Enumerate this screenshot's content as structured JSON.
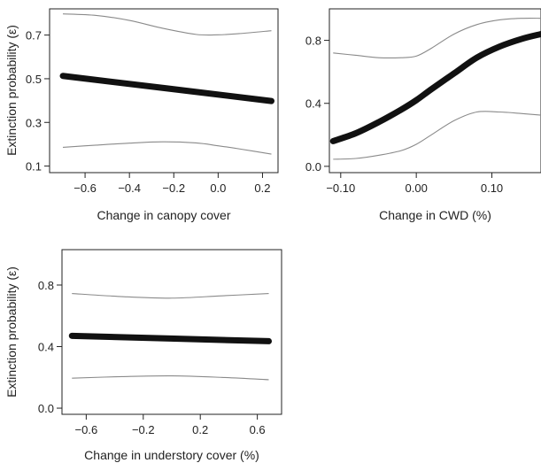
{
  "chart_data": [
    {
      "type": "line",
      "xlabel": "Change in canopy cover",
      "ylabel": "Extinction probability (ε)",
      "xlim": [
        -0.76,
        0.27
      ],
      "ylim": [
        0.07,
        0.82
      ],
      "xticks": [
        -0.6,
        -0.4,
        -0.2,
        0.0,
        0.2
      ],
      "xtick_labels": [
        "−0.6",
        "−0.4",
        "−0.2",
        "0.0",
        "0.2"
      ],
      "yticks": [
        0.1,
        0.3,
        0.5,
        0.7
      ],
      "ytick_labels": [
        "0.1",
        "0.3",
        "0.5",
        "0.7"
      ],
      "series": [
        {
          "role": "lower",
          "color": "#8a8a8a",
          "x": [
            -0.7,
            -0.55,
            -0.4,
            -0.25,
            -0.1,
            0.0,
            0.1,
            0.24
          ],
          "values": [
            0.186,
            0.196,
            0.205,
            0.211,
            0.206,
            0.193,
            0.178,
            0.155
          ]
        },
        {
          "role": "estimate",
          "color": "#111111",
          "x": [
            -0.7,
            0.24
          ],
          "values": [
            0.513,
            0.398
          ]
        },
        {
          "role": "upper",
          "color": "#8a8a8a",
          "x": [
            -0.7,
            -0.55,
            -0.4,
            -0.25,
            -0.1,
            0.0,
            0.1,
            0.24
          ],
          "values": [
            0.797,
            0.79,
            0.767,
            0.731,
            0.703,
            0.701,
            0.707,
            0.72
          ]
        }
      ]
    },
    {
      "type": "line",
      "xlabel": "Change in CWD (%)",
      "ylabel": "",
      "xlim": [
        -0.115,
        0.165
      ],
      "ylim": [
        -0.04,
        1.0
      ],
      "xticks": [
        -0.1,
        0.0,
        0.1
      ],
      "xtick_labels": [
        "−0.10",
        "0.00",
        "0.10"
      ],
      "yticks": [
        0.0,
        0.4,
        0.8
      ],
      "ytick_labels": [
        "0.0",
        "0.4",
        "0.8"
      ],
      "series": [
        {
          "role": "lower",
          "color": "#8a8a8a",
          "x": [
            -0.11,
            -0.08,
            -0.05,
            -0.02,
            0.0,
            0.02,
            0.05,
            0.08,
            0.11,
            0.14,
            0.165
          ],
          "values": [
            0.045,
            0.05,
            0.07,
            0.1,
            0.14,
            0.2,
            0.29,
            0.345,
            0.345,
            0.335,
            0.325
          ]
        },
        {
          "role": "estimate",
          "color": "#111111",
          "x": [
            -0.11,
            -0.08,
            -0.05,
            -0.02,
            0.0,
            0.02,
            0.05,
            0.08,
            0.11,
            0.14,
            0.165
          ],
          "values": [
            0.16,
            0.21,
            0.28,
            0.36,
            0.42,
            0.49,
            0.59,
            0.69,
            0.76,
            0.81,
            0.84
          ]
        },
        {
          "role": "upper",
          "color": "#8a8a8a",
          "x": [
            -0.11,
            -0.08,
            -0.05,
            -0.02,
            0.0,
            0.02,
            0.05,
            0.08,
            0.11,
            0.14,
            0.165
          ],
          "values": [
            0.72,
            0.705,
            0.69,
            0.69,
            0.7,
            0.75,
            0.84,
            0.9,
            0.93,
            0.94,
            0.94
          ]
        }
      ]
    },
    {
      "type": "line",
      "xlabel": "Change in understory cover (%)",
      "ylabel": "Extinction probability (ε)",
      "xlim": [
        -0.77,
        0.77
      ],
      "ylim": [
        -0.04,
        1.03
      ],
      "xticks": [
        -0.6,
        -0.2,
        0.2,
        0.6
      ],
      "xtick_labels": [
        "−0.6",
        "−0.2",
        "0.2",
        "0.6"
      ],
      "yticks": [
        0.0,
        0.4,
        0.8
      ],
      "ytick_labels": [
        "0.0",
        "0.4",
        "0.8"
      ],
      "series": [
        {
          "role": "lower",
          "color": "#8a8a8a",
          "x": [
            -0.7,
            -0.35,
            0.0,
            0.35,
            0.68
          ],
          "values": [
            0.195,
            0.205,
            0.21,
            0.2,
            0.185
          ]
        },
        {
          "role": "estimate",
          "color": "#111111",
          "x": [
            -0.7,
            0.68
          ],
          "values": [
            0.47,
            0.435
          ]
        },
        {
          "role": "upper",
          "color": "#8a8a8a",
          "x": [
            -0.7,
            -0.35,
            0.0,
            0.35,
            0.68
          ],
          "values": [
            0.745,
            0.725,
            0.715,
            0.73,
            0.745
          ]
        }
      ]
    }
  ]
}
